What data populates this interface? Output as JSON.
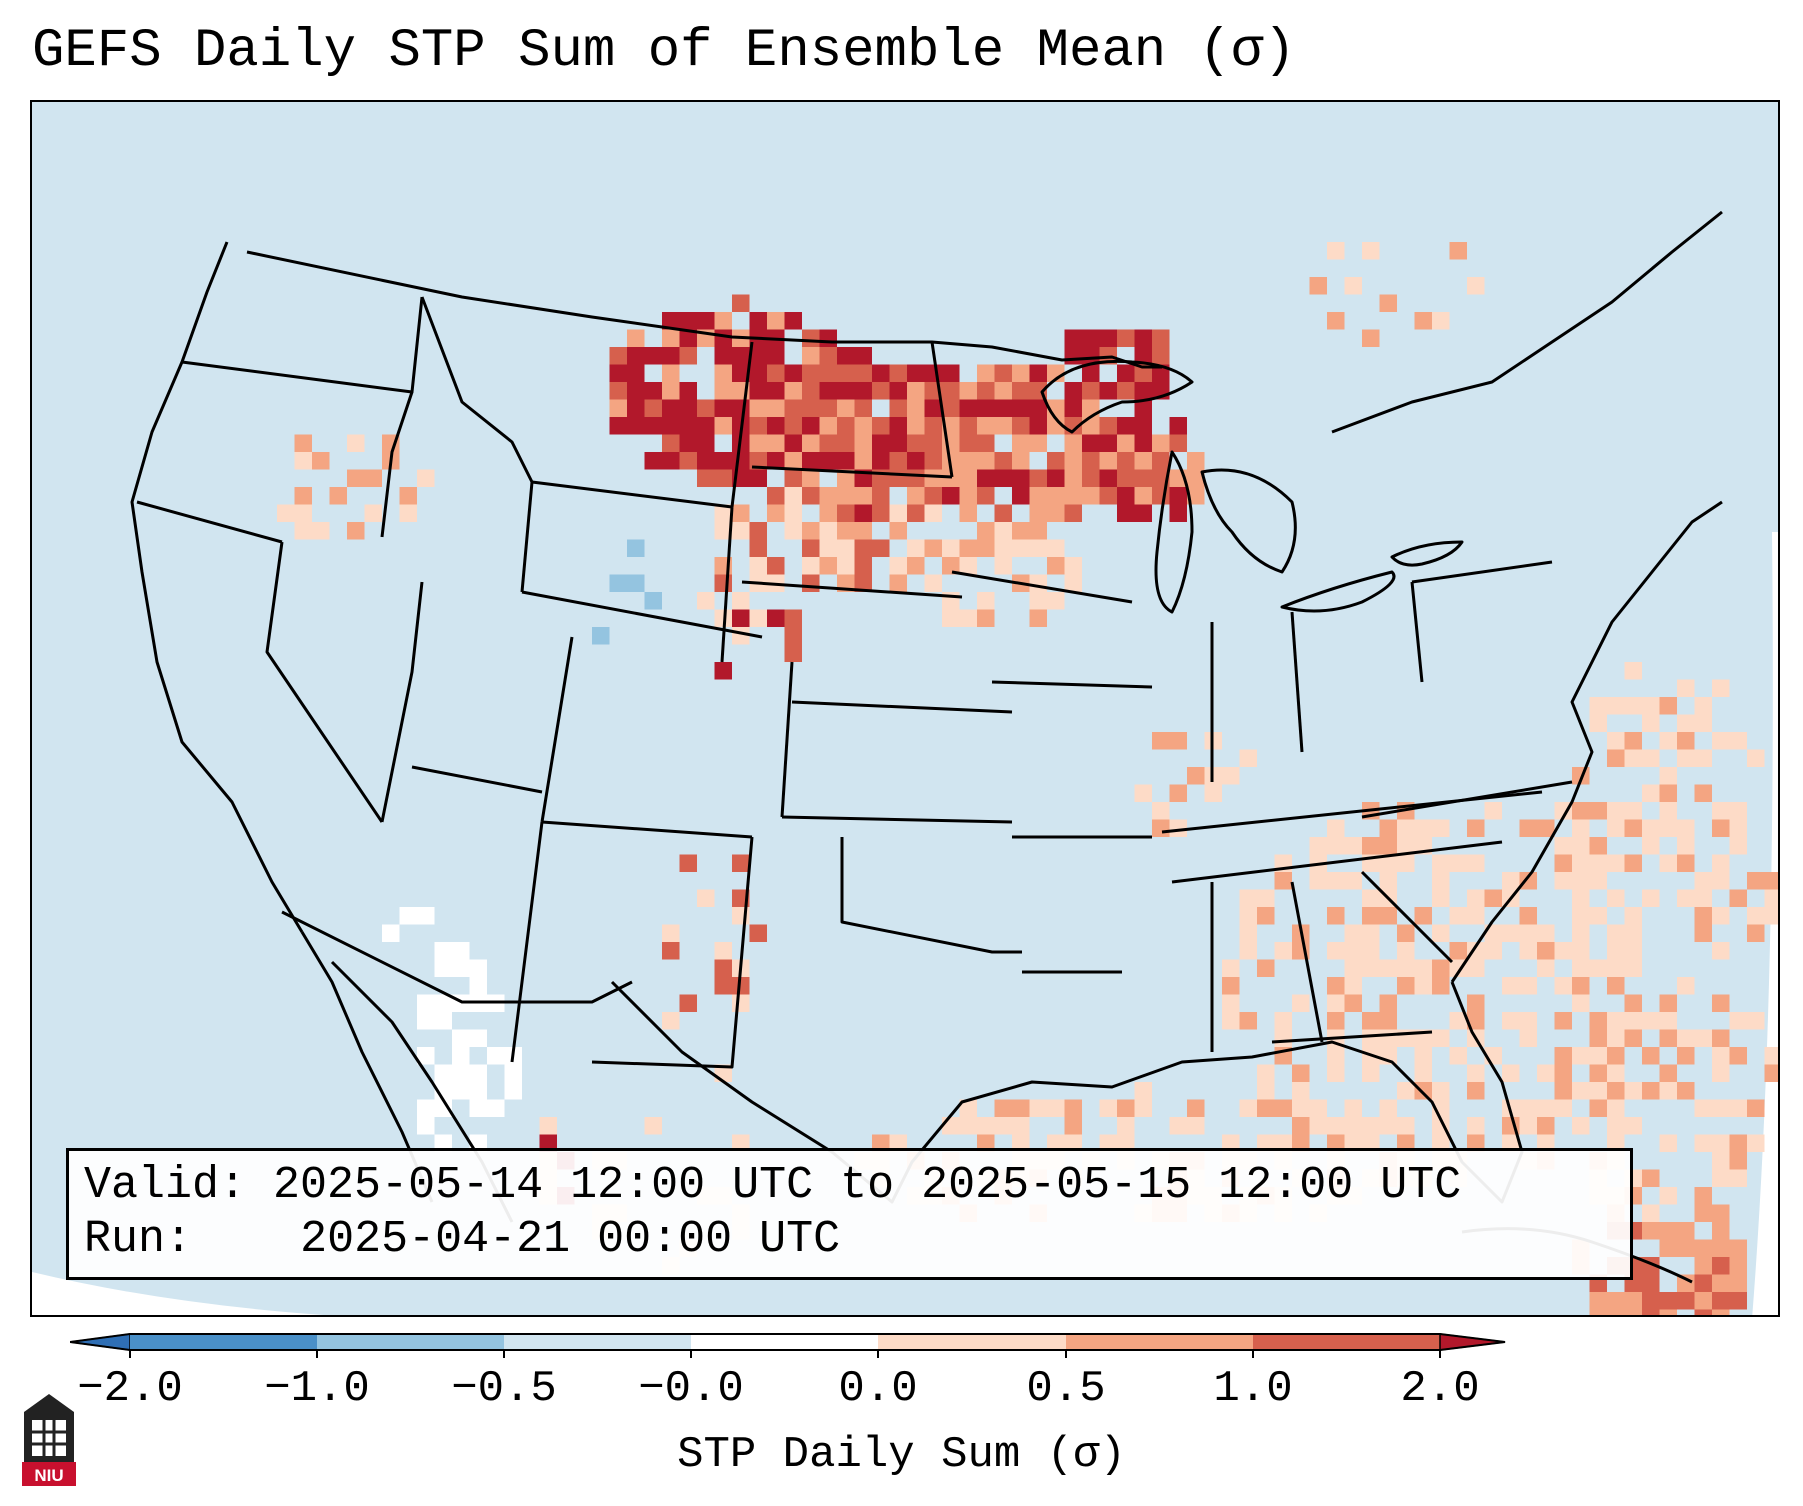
{
  "title": "GEFS Daily STP Sum of Ensemble Mean (σ)",
  "info": {
    "valid_label": "Valid:",
    "valid_value": "2025-05-14 12:00 UTC to 2025-05-15 12:00 UTC",
    "run_label": "Run:",
    "run_value": "2025-04-21 00:00 UTC"
  },
  "colorbar": {
    "label": "STP Daily Sum (σ)",
    "ticks": [
      "−2.0",
      "−1.0",
      "−0.5",
      "−0.0",
      "0.0",
      "0.5",
      "1.0",
      "2.0"
    ],
    "bins": [
      {
        "range": "< −2.0",
        "color": "#2f6fb5"
      },
      {
        "range": "−2.0 to −1.0",
        "color": "#4a90c8"
      },
      {
        "range": "−1.0 to −0.5",
        "color": "#94c4e0"
      },
      {
        "range": "−0.5 to −0.0",
        "color": "#d1e5f0"
      },
      {
        "range": "−0.0 to 0.0",
        "color": "#ffffff"
      },
      {
        "range": "0.0 to 0.5",
        "color": "#fddbc7"
      },
      {
        "range": "0.5 to 1.0",
        "color": "#f4a582"
      },
      {
        "range": "1.0 to 2.0",
        "color": "#d6604d"
      },
      {
        "range": "> 2.0",
        "color": "#b2182b"
      }
    ]
  },
  "logo": {
    "text": "NIU"
  },
  "map": {
    "background_color": "#d1e5f0",
    "outside_projection_color": "#ffffff"
  }
}
